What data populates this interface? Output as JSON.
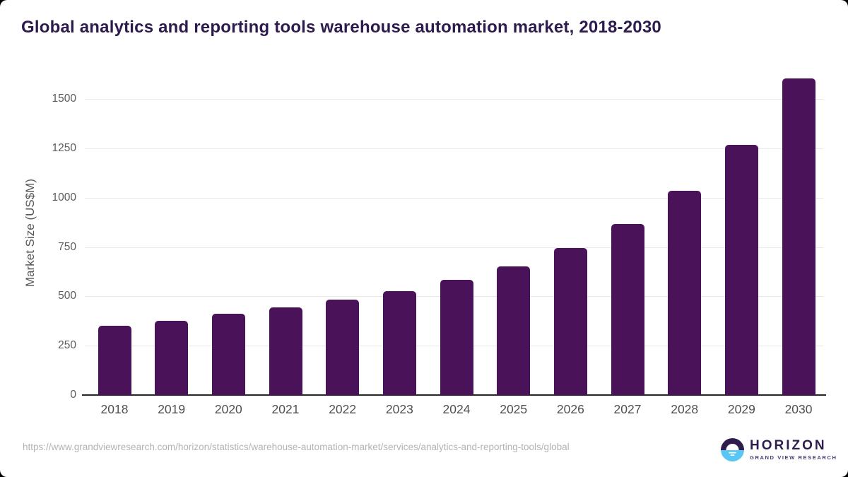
{
  "page": {
    "title": "Global analytics and reporting tools warehouse automation market, 2018-2030"
  },
  "chart_data": {
    "type": "bar",
    "title": "Global analytics and reporting tools warehouse automation market, 2018-2030",
    "categories": [
      "2018",
      "2019",
      "2020",
      "2021",
      "2022",
      "2023",
      "2024",
      "2025",
      "2026",
      "2027",
      "2028",
      "2029",
      "2030"
    ],
    "values": [
      350,
      378,
      411,
      445,
      484,
      528,
      584,
      653,
      745,
      867,
      1036,
      1270,
      1606
    ],
    "xlabel": "",
    "ylabel": "Market Size (US$M)",
    "yticks": [
      0,
      250,
      500,
      750,
      1000,
      1250,
      1500
    ],
    "ylim": [
      0,
      1645
    ],
    "grid": true,
    "legend": false,
    "bar_color": "#4a1259"
  },
  "footer": {
    "source_url": "https://www.grandviewresearch.com/horizon/statistics/warehouse-automation-market/services/analytics-and-reporting-tools/global",
    "logo": {
      "brand": "HORIZON",
      "sub_brand": "GRAND VIEW RESEARCH"
    }
  },
  "colors": {
    "bar": "#4a1259",
    "title_text": "#2d1b4e",
    "axis_text": "#5b5b5b",
    "gridline": "#e9e9e9",
    "axis_line": "#262626",
    "url_text": "#b3b3b3",
    "logo_purple": "#2f1d4e",
    "logo_blue": "#58c7f3",
    "logo_sub_text": "#4d3c77"
  }
}
